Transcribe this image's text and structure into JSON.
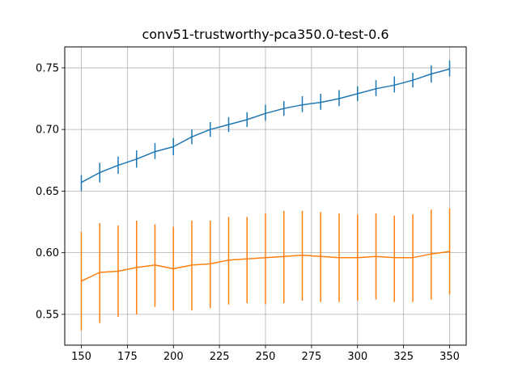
{
  "chart_data": {
    "type": "line",
    "title": "conv51-trustworthy-pca350.0-test-0.6",
    "xlabel": "",
    "ylabel": "",
    "xlim": [
      141,
      359
    ],
    "ylim": [
      0.525,
      0.767
    ],
    "grid": true,
    "x_ticks": [
      150,
      175,
      200,
      225,
      250,
      275,
      300,
      325,
      350
    ],
    "y_ticks": [
      0.55,
      0.6,
      0.65,
      0.7,
      0.75
    ],
    "x": [
      150,
      160,
      170,
      180,
      190,
      200,
      210,
      220,
      230,
      240,
      250,
      260,
      270,
      280,
      290,
      300,
      310,
      320,
      330,
      340,
      350
    ],
    "series": [
      {
        "color": "#1f77b4",
        "values": [
          0.657,
          0.665,
          0.671,
          0.676,
          0.682,
          0.686,
          0.694,
          0.7,
          0.704,
          0.708,
          0.713,
          0.717,
          0.72,
          0.722,
          0.725,
          0.729,
          0.733,
          0.736,
          0.74,
          0.745,
          0.749
        ],
        "err_low": [
          0.65,
          0.657,
          0.664,
          0.669,
          0.676,
          0.679,
          0.688,
          0.694,
          0.698,
          0.702,
          0.707,
          0.711,
          0.714,
          0.716,
          0.719,
          0.723,
          0.727,
          0.73,
          0.734,
          0.738,
          0.743
        ],
        "err_high": [
          0.663,
          0.673,
          0.678,
          0.683,
          0.689,
          0.693,
          0.7,
          0.706,
          0.71,
          0.714,
          0.72,
          0.723,
          0.727,
          0.729,
          0.732,
          0.735,
          0.74,
          0.743,
          0.746,
          0.752,
          0.756
        ]
      },
      {
        "color": "#ff7f0e",
        "values": [
          0.577,
          0.584,
          0.585,
          0.588,
          0.59,
          0.587,
          0.59,
          0.591,
          0.594,
          0.595,
          0.596,
          0.597,
          0.598,
          0.597,
          0.596,
          0.596,
          0.597,
          0.596,
          0.596,
          0.599,
          0.601
        ],
        "err_low": [
          0.537,
          0.543,
          0.548,
          0.55,
          0.556,
          0.553,
          0.553,
          0.555,
          0.558,
          0.559,
          0.558,
          0.559,
          0.561,
          0.56,
          0.56,
          0.561,
          0.562,
          0.56,
          0.56,
          0.562,
          0.566
        ],
        "err_high": [
          0.617,
          0.624,
          0.622,
          0.626,
          0.623,
          0.621,
          0.626,
          0.626,
          0.629,
          0.629,
          0.632,
          0.634,
          0.634,
          0.633,
          0.632,
          0.631,
          0.632,
          0.63,
          0.631,
          0.635,
          0.636
        ]
      }
    ]
  }
}
